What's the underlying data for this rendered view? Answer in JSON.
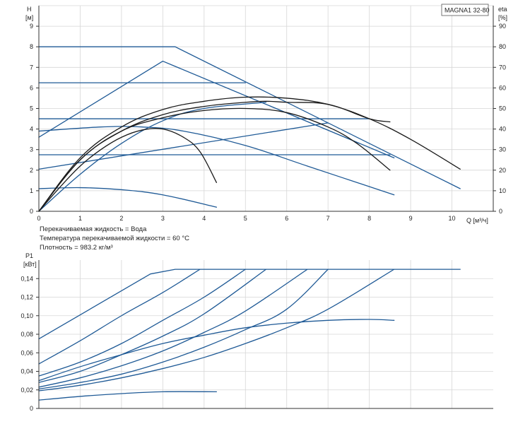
{
  "model": "MAGNA1 32-80",
  "notes": [
    "Перекачиваемая жидкость = Вода",
    "Температура перекачиваемой жидкости = 60 °C",
    "Плотность = 983.2 кг/м³"
  ],
  "colors": {
    "blue": "#1f5a96",
    "black": "#1a1a1a",
    "grid": "#d6d6d6",
    "axis": "#333333"
  },
  "chart_data": [
    {
      "id": "head",
      "type": "line",
      "title": "",
      "ylabel": "H",
      "yunit": "[м]",
      "y2label": "eta",
      "y2unit": "[%]",
      "xlabel": "Q [м³/ч]",
      "xlim": [
        0,
        11
      ],
      "ylim": [
        0,
        10
      ],
      "y2lim": [
        0,
        100
      ],
      "xticks": [
        "0",
        "1",
        "2",
        "3",
        "4",
        "5",
        "6",
        "7",
        "8",
        "9",
        "10"
      ],
      "yticks": [
        "0",
        "1",
        "2",
        "3",
        "4",
        "5",
        "6",
        "7",
        "8",
        "9"
      ],
      "y2ticks": [
        "0",
        "10",
        "20",
        "30",
        "40",
        "50",
        "60",
        "70",
        "80",
        "90"
      ],
      "grid": true,
      "series": [
        {
          "color": "blue",
          "x": [
            0,
            3.3,
            10.2
          ],
          "y": [
            8.0,
            8.0,
            1.1
          ]
        },
        {
          "color": "blue",
          "x": [
            0,
            5.0
          ],
          "y": [
            6.25,
            6.25
          ]
        },
        {
          "color": "blue",
          "x": [
            0,
            8.0
          ],
          "y": [
            4.5,
            4.5
          ]
        },
        {
          "color": "blue",
          "x": [
            0,
            8.5
          ],
          "y": [
            2.75,
            2.75
          ]
        },
        {
          "color": "blue",
          "x": [
            0,
            3.0,
            8.6
          ],
          "y": [
            3.6,
            7.3,
            2.6
          ]
        },
        {
          "color": "blue",
          "x": [
            0,
            1.5,
            2.5,
            3.5,
            5.0,
            6.5,
            8.6
          ],
          "y": [
            3.9,
            4.1,
            4.1,
            3.9,
            3.2,
            2.2,
            0.8
          ]
        },
        {
          "color": "blue",
          "x": [
            0,
            1.0,
            2.0,
            3.0,
            4.3
          ],
          "y": [
            1.1,
            1.15,
            1.05,
            0.8,
            0.2
          ]
        },
        {
          "color": "blue",
          "x": [
            0,
            7.0
          ],
          "y": [
            2.05,
            4.3
          ]
        },
        {
          "color": "blue",
          "x": [
            0,
            1.0,
            2.0,
            3.0,
            4.0,
            5.5
          ],
          "y": [
            0,
            1.8,
            3.3,
            4.4,
            5.0,
            5.3
          ]
        },
        {
          "color": "black",
          "x": [
            0,
            0.5,
            1,
            1.5,
            2,
            2.5,
            3,
            3.5,
            3.9,
            4.3
          ],
          "y": [
            0,
            1.15,
            2.2,
            3.0,
            3.6,
            3.95,
            4.0,
            3.6,
            2.9,
            1.4
          ]
        },
        {
          "color": "black",
          "x": [
            0,
            1,
            2,
            3,
            4,
            5,
            6,
            7,
            7.7,
            8.5
          ],
          "y": [
            0,
            2.5,
            3.9,
            4.55,
            4.9,
            5.0,
            4.8,
            4.1,
            3.3,
            2.0
          ]
        },
        {
          "color": "black",
          "x": [
            0,
            1,
            2,
            3,
            4,
            5,
            5.5,
            6,
            7,
            8,
            8.5
          ],
          "y": [
            0,
            2.5,
            3.9,
            4.7,
            5.1,
            5.3,
            5.35,
            5.3,
            5.2,
            4.5,
            4.35
          ]
        },
        {
          "color": "black",
          "x": [
            0,
            1,
            2,
            3,
            4,
            5,
            6,
            7,
            8,
            9,
            10.2
          ],
          "y": [
            0,
            2.6,
            4.1,
            4.95,
            5.35,
            5.55,
            5.5,
            5.2,
            4.5,
            3.5,
            2.05
          ]
        }
      ]
    },
    {
      "id": "power",
      "type": "line",
      "title": "",
      "ylabel": "P1",
      "yunit": "[кВт]",
      "xlabel": "",
      "xlim": [
        0,
        11
      ],
      "ylim": [
        0,
        0.16
      ],
      "yticks": [
        "0",
        "0,02",
        "0,04",
        "0,06",
        "0,08",
        "0,10",
        "0,12",
        "0,14"
      ],
      "grid": true,
      "series": [
        {
          "color": "blue",
          "x": [
            0,
            2.7,
            3.3,
            10.2
          ],
          "y": [
            0.075,
            0.145,
            0.15,
            0.15
          ]
        },
        {
          "color": "blue",
          "x": [
            0,
            1,
            2,
            3,
            3.9
          ],
          "y": [
            0.048,
            0.073,
            0.1,
            0.125,
            0.15
          ]
        },
        {
          "color": "blue",
          "x": [
            0,
            1,
            2,
            3,
            4,
            5.0
          ],
          "y": [
            0.035,
            0.05,
            0.07,
            0.095,
            0.12,
            0.15
          ]
        },
        {
          "color": "blue",
          "x": [
            0,
            1,
            2,
            3,
            4,
            5.5
          ],
          "y": [
            0.028,
            0.04,
            0.058,
            0.078,
            0.102,
            0.15
          ]
        },
        {
          "color": "blue",
          "x": [
            0,
            1,
            2,
            3,
            4,
            5,
            6.5
          ],
          "y": [
            0.023,
            0.033,
            0.046,
            0.062,
            0.082,
            0.105,
            0.15
          ]
        },
        {
          "color": "blue",
          "x": [
            0,
            1,
            2,
            3,
            4,
            5,
            6,
            7.0
          ],
          "y": [
            0.021,
            0.028,
            0.037,
            0.05,
            0.066,
            0.085,
            0.107,
            0.15
          ]
        },
        {
          "color": "blue",
          "x": [
            0,
            1,
            2,
            3,
            4,
            5,
            6,
            7,
            8.6
          ],
          "y": [
            0.019,
            0.025,
            0.033,
            0.043,
            0.055,
            0.07,
            0.087,
            0.107,
            0.15
          ]
        },
        {
          "color": "blue",
          "x": [
            0,
            1,
            2,
            3,
            4,
            5,
            6,
            7,
            8,
            8.6
          ],
          "y": [
            0.03,
            0.045,
            0.058,
            0.07,
            0.079,
            0.087,
            0.092,
            0.095,
            0.096,
            0.095
          ]
        },
        {
          "color": "blue",
          "x": [
            0,
            1,
            2,
            3,
            4.3
          ],
          "y": [
            0.009,
            0.013,
            0.016,
            0.018,
            0.018
          ]
        }
      ]
    }
  ]
}
